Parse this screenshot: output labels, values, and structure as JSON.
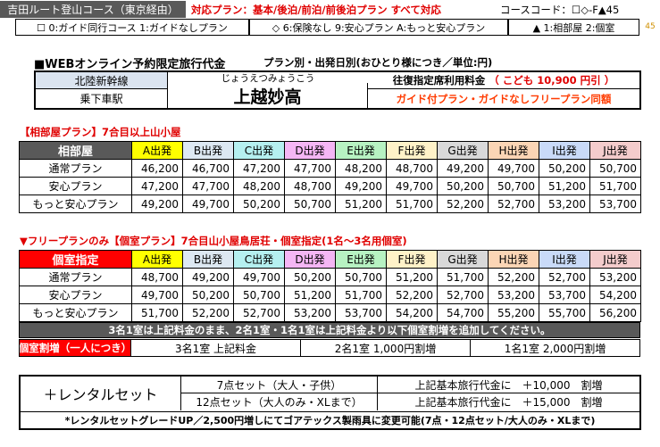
{
  "header": {
    "course_name": "吉田ルート登山コース（東京経由）",
    "plans_supported": "対応プラン：基本/後泊/前泊/前後泊プラン すべて対応",
    "course_code": "コースコード：☐◇-F▲45",
    "side_number": "45",
    "legend_guide": "☐ 0:ガイド同行コース 1:ガイドなしプラン",
    "legend_plan": "◇ 6:保険なし 9:安心プラン A:もっと安心プラン",
    "legend_room": "▲ 1:相部屋 2:個室"
  },
  "title_block": {
    "main_title": "■WEBオンライン予約限定旅行代金",
    "sub_title": "プラン別・出発日別(おひとり様につき／単位:円)",
    "line_name": "北陸新幹線",
    "board_label": "乗下車駅",
    "station_reading": "じょうえつみょうこう",
    "station_name": "上越妙高",
    "fare_label": "往復指定席利用料金",
    "fare_child": "（ こども 10,900 円引 ）",
    "guide_note": "ガイド付プラン・ガイドなしフリープラン同額"
  },
  "shared_room": {
    "section_title": "【相部屋プラン】7合目以上山小屋",
    "corner_label": "相部屋",
    "columns": [
      "A出発",
      "B出発",
      "C出発",
      "D出発",
      "E出発",
      "F出発",
      "G出発",
      "H出発",
      "I出発",
      "J出発"
    ],
    "rows": [
      {
        "label": "通常プラン",
        "values": [
          "46,200",
          "46,700",
          "47,200",
          "47,700",
          "48,200",
          "48,700",
          "49,200",
          "49,700",
          "50,200",
          "50,700"
        ]
      },
      {
        "label": "安心プラン",
        "values": [
          "47,200",
          "47,700",
          "48,200",
          "48,700",
          "49,200",
          "49,700",
          "50,200",
          "50,700",
          "51,200",
          "51,700"
        ]
      },
      {
        "label": "もっと安心プラン",
        "values": [
          "49,200",
          "49,700",
          "50,200",
          "50,700",
          "51,200",
          "51,700",
          "52,200",
          "52,700",
          "53,200",
          "53,700"
        ]
      }
    ]
  },
  "private_room": {
    "section_title": "▼フリープランのみ【個室プラン】7合目山小屋鳥居荘・個室指定(1名～3名用個室)",
    "corner_label": "個室指定",
    "columns": [
      "A出発",
      "B出発",
      "C出発",
      "D出発",
      "E出発",
      "F出発",
      "G出発",
      "H出発",
      "I出発",
      "J出発"
    ],
    "rows": [
      {
        "label": "通常プラン",
        "values": [
          "48,700",
          "49,200",
          "49,700",
          "50,200",
          "50,700",
          "51,200",
          "51,700",
          "52,200",
          "52,700",
          "53,200"
        ]
      },
      {
        "label": "安心プラン",
        "values": [
          "49,700",
          "50,200",
          "50,700",
          "51,200",
          "51,700",
          "52,200",
          "52,700",
          "53,200",
          "53,700",
          "54,200"
        ]
      },
      {
        "label": "もっと安心プラン",
        "values": [
          "51,700",
          "52,200",
          "52,700",
          "53,200",
          "53,700",
          "54,200",
          "54,700",
          "55,200",
          "55,700",
          "56,200"
        ]
      }
    ],
    "note": "3名1室は上記料金のまま、2名1室・1名1室は上記料金より以下個室割増を追加してください。",
    "surcharge_label": "個室割増（一人につき）",
    "surcharge_3": "3名1室 上記料金",
    "surcharge_2": "2名1室 1,000円割増",
    "surcharge_1": "1名1室 2,000円割増"
  },
  "rental": {
    "label": "＋レンタルセット",
    "set7": "7点セット（大人・子供）",
    "set7_price": "上記基本旅行代金に　＋10,000　割増",
    "set12": "12点セット（大人のみ・XLまで）",
    "set12_price": "上記基本旅行代金に　＋15,000　割増",
    "footnote": "*レンタルセットグレードUP／2,500円増しにてゴアテックス製雨具に変更可能(7点・12点セット/大人のみ・XLまで)"
  },
  "colors": {
    "orange_text": "#ff3b00",
    "red_text": "#e00000",
    "dark_gray": "#595959",
    "red_fill": "#ff0000",
    "col_A": "#ffff00",
    "col_B": "#dde8f2",
    "col_C": "#b5f0f0",
    "col_D": "#f4b6f4",
    "col_E": "#b7f2c2",
    "col_F": "#fff2c8",
    "col_G": "#d9d9d9",
    "col_H": "#fbd5b5",
    "col_I": "#c9daf8",
    "col_J": "#f4cccc"
  }
}
